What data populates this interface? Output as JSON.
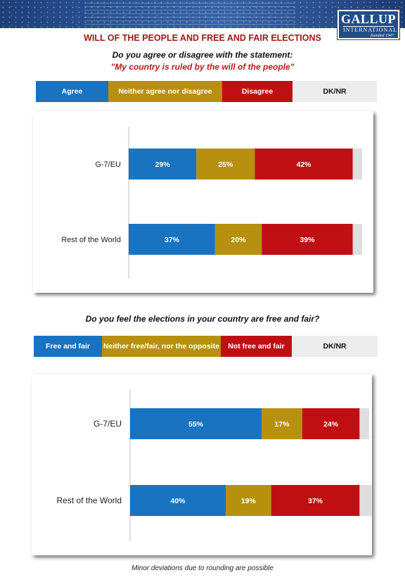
{
  "header": {
    "logo_main": "GALLUP",
    "logo_sub": "INTERNATIONAL",
    "logo_founded": "founded 1947"
  },
  "title": "WILL OF THE PEOPLE AND FREE AND FAIR ELECTIONS",
  "chart1": {
    "question": "Do you agree or disagree with the statement:",
    "statement": "\"My country is ruled by the will of the people\"",
    "legend": [
      "Agree",
      "Neither agree nor disagree",
      "Disagree",
      "DK/NR"
    ]
  },
  "chart2": {
    "question": "Do you feel the elections in your country are free and fair?",
    "legend": [
      "Free and fair",
      "Neither free/fair, nor the opposite",
      "Not free and fair",
      "DK/NR"
    ]
  },
  "footnote": "Minor deviations due to rounding are possible",
  "colors": {
    "blue": "#1a73c1",
    "gold": "#b8900f",
    "red": "#c00f13",
    "gray": "#dedede",
    "title_red": "#a01818",
    "logo_blue": "#1f4e8c"
  },
  "chart_data": [
    {
      "type": "bar",
      "orientation": "horizontal-stacked",
      "categories": [
        "G-7/EU",
        "Rest of the World"
      ],
      "series": [
        {
          "name": "Agree",
          "values": [
            29,
            37
          ],
          "color": "#1a73c1"
        },
        {
          "name": "Neither agree nor disagree",
          "values": [
            25,
            20
          ],
          "color": "#b8900f"
        },
        {
          "name": "Disagree",
          "values": [
            42,
            39
          ],
          "color": "#c00f13"
        },
        {
          "name": "DK/NR",
          "values": [
            4,
            4
          ],
          "color": "#dedede"
        }
      ],
      "labels": [
        [
          "29%",
          "25%",
          "42%",
          ""
        ],
        [
          "37%",
          "20%",
          "39%",
          ""
        ]
      ],
      "xlim": [
        0,
        100
      ],
      "legend": "top"
    },
    {
      "type": "bar",
      "orientation": "horizontal-stacked",
      "categories": [
        "G-7/EU",
        "Rest of the World"
      ],
      "series": [
        {
          "name": "Free and fair",
          "values": [
            55,
            40
          ],
          "color": "#1a73c1"
        },
        {
          "name": "Neither free/fair, nor the opposite",
          "values": [
            17,
            19
          ],
          "color": "#b8900f"
        },
        {
          "name": "Not free and fair",
          "values": [
            24,
            37
          ],
          "color": "#c00f13"
        },
        {
          "name": "DK/NR",
          "values": [
            4,
            5
          ],
          "color": "#dedede"
        }
      ],
      "labels": [
        [
          "55%",
          "17%",
          "24%",
          ""
        ],
        [
          "40%",
          "19%",
          "37%",
          ""
        ]
      ],
      "xlim": [
        0,
        100
      ],
      "legend": "top"
    }
  ]
}
